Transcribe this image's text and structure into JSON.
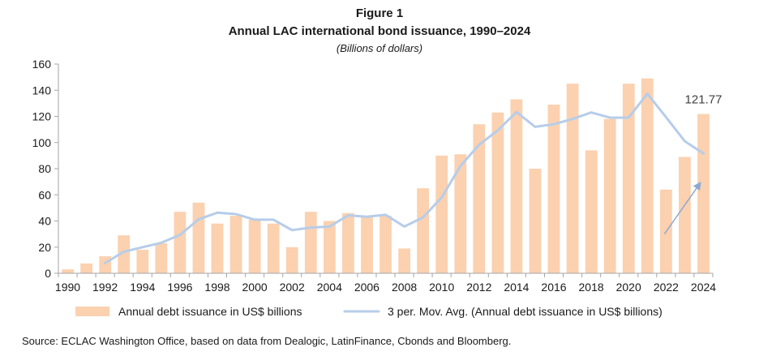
{
  "figure_label": "Figure 1",
  "source": "Source: ECLAC Washington Office, based on data from Dealogic, LatinFinance, Cbonds and Bloomberg.",
  "colors": {
    "bar": "#fbd1b0",
    "line": "#b6cde9",
    "arrow": "#8ea9d0",
    "axis": "#a6a6a6"
  },
  "chart_data": {
    "type": "bar",
    "title": "Annual LAC international bond issuance, 1990–2024",
    "subtitle": "(Billions of dollars)",
    "xlabel": "",
    "ylabel": "",
    "ylim": [
      0,
      160
    ],
    "yticks": [
      "0",
      "20",
      "40",
      "60",
      "80",
      "100",
      "120",
      "140",
      "160"
    ],
    "grid": false,
    "legend_position": "bottom",
    "categories": [
      1990,
      1991,
      1992,
      1993,
      1994,
      1995,
      1996,
      1997,
      1998,
      1999,
      2000,
      2001,
      2002,
      2003,
      2004,
      2005,
      2006,
      2007,
      2008,
      2009,
      2010,
      2011,
      2012,
      2013,
      2014,
      2015,
      2016,
      2017,
      2018,
      2019,
      2020,
      2021,
      2022,
      2023,
      2024
    ],
    "xticks": [
      "1990",
      "1992",
      "1994",
      "1996",
      "1998",
      "2000",
      "2002",
      "2004",
      "2006",
      "2008",
      "2010",
      "2012",
      "2014",
      "2016",
      "2018",
      "2020",
      "2022",
      "2024"
    ],
    "series": [
      {
        "name": "Annual debt issuance in US$ billions",
        "type": "bar",
        "values": [
          3,
          7.5,
          13,
          29,
          18,
          23,
          47,
          54,
          38,
          44,
          41,
          38,
          20,
          47,
          40,
          46,
          44,
          44,
          19,
          65,
          90,
          91,
          114,
          123,
          133,
          80,
          129,
          145,
          94,
          118,
          145,
          149,
          64,
          89,
          121.77
        ]
      },
      {
        "name": "3 per. Mov. Avg. (Annual debt issuance in US$ billions)",
        "type": "line",
        "values": [
          null,
          null,
          7.8,
          16.5,
          20,
          23.3,
          29.3,
          41.3,
          46.3,
          45.3,
          41,
          41,
          33,
          35,
          35.7,
          44.3,
          43.3,
          44.7,
          35.7,
          42.7,
          58,
          82,
          98.3,
          109.3,
          123.3,
          112,
          114,
          118,
          123,
          119,
          119,
          137.3,
          119.3,
          101,
          91.6
        ]
      }
    ],
    "annotations": [
      {
        "label": "121.77",
        "category": 2024,
        "value": 121.77
      }
    ]
  }
}
